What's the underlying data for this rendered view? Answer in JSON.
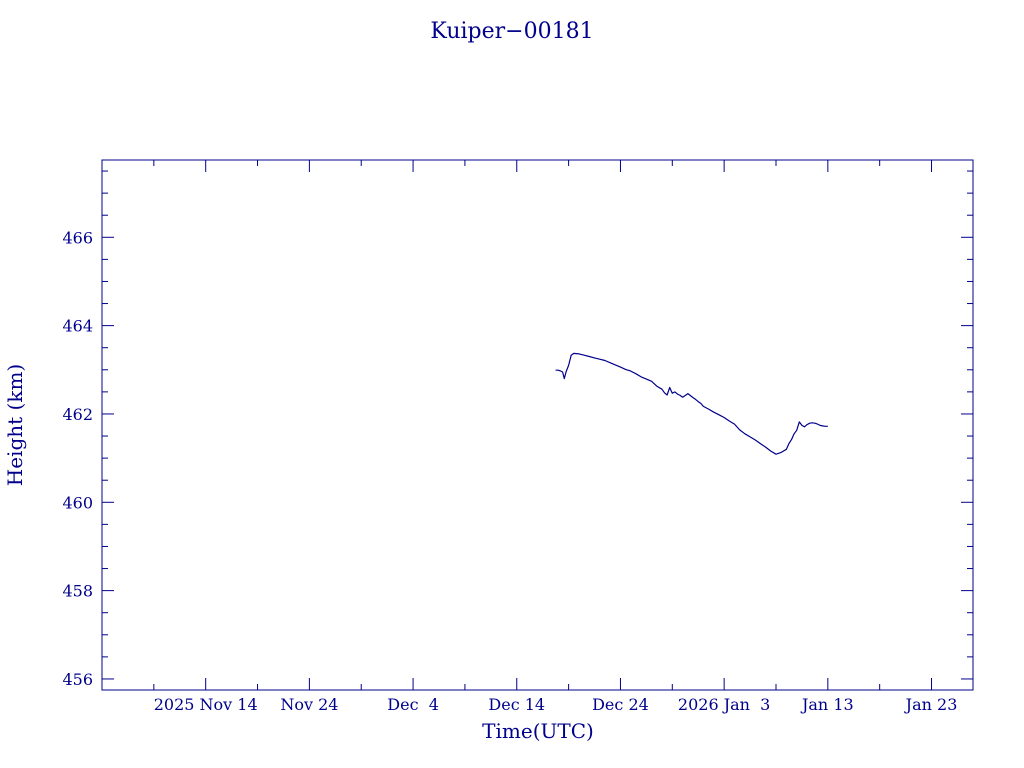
{
  "chart_data": {
    "type": "line",
    "title": "Kuiper−00181",
    "xlabel": "Time(UTC)",
    "ylabel": "Height (km)",
    "x_unit": "date (UTC)",
    "xlim": [
      "2025-11-04",
      "2026-01-27"
    ],
    "ylim": [
      455.75,
      467.75
    ],
    "x_tick_labels": [
      {
        "at": "2025-11-14",
        "label": "2025 Nov 14"
      },
      {
        "at": "2025-11-24",
        "label": "Nov 24"
      },
      {
        "at": "2025-12-04",
        "label": "Dec  4"
      },
      {
        "at": "2025-12-14",
        "label": "Dec 14"
      },
      {
        "at": "2025-12-24",
        "label": "Dec 24"
      },
      {
        "at": "2026-01-03",
        "label": "2026 Jan  3"
      },
      {
        "at": "2026-01-13",
        "label": "Jan 13"
      },
      {
        "at": "2026-01-23",
        "label": "Jan 23"
      }
    ],
    "x_minor_ticks": [
      "2025-11-09",
      "2025-11-19",
      "2025-11-29",
      "2025-12-09",
      "2025-12-19",
      "2025-12-29",
      "2026-01-08",
      "2026-01-18"
    ],
    "y_ticks": [
      456,
      458,
      460,
      462,
      464,
      466
    ],
    "y_tick_labels": [
      "456",
      "458",
      "460",
      "462",
      "464",
      "466"
    ],
    "y_minor_step": 0.5,
    "grid": false,
    "legend": "none",
    "color": "#00008b",
    "series": [
      {
        "x": [
          "2025-12-17T18:00",
          "2025-12-18T00:00",
          "2025-12-18T06:00",
          "2025-12-18T10:00",
          "2025-12-18T14:00",
          "2025-12-18T18:00",
          "2025-12-19T00:00",
          "2025-12-19T06:00",
          "2025-12-19T12:00",
          "2025-12-20T00:00",
          "2025-12-20T12:00",
          "2025-12-21T00:00",
          "2025-12-21T12:00",
          "2025-12-22T00:00",
          "2025-12-22T12:00",
          "2025-12-23T00:00",
          "2025-12-23T12:00",
          "2025-12-24T00:00",
          "2025-12-24T12:00",
          "2025-12-25T00:00",
          "2025-12-25T12:00",
          "2025-12-26T00:00",
          "2025-12-26T12:00",
          "2025-12-27T00:00",
          "2025-12-27T12:00",
          "2025-12-28T00:00",
          "2025-12-28T06:00",
          "2025-12-28T12:00",
          "2025-12-28T18:00",
          "2025-12-29T00:00",
          "2025-12-29T06:00",
          "2025-12-29T12:00",
          "2025-12-29T18:00",
          "2025-12-30T00:00",
          "2025-12-30T12:00",
          "2025-12-31T00:00",
          "2025-12-31T06:00",
          "2025-12-31T12:00",
          "2025-12-31T18:00",
          "2026-01-01T00:00",
          "2026-01-01T12:00",
          "2026-01-02T00:00",
          "2026-01-02T12:00",
          "2026-01-03T00:00",
          "2026-01-03T12:00",
          "2026-01-04T00:00",
          "2026-01-04T12:00",
          "2026-01-05T00:00",
          "2026-01-05T12:00",
          "2026-01-06T00:00",
          "2026-01-06T12:00",
          "2026-01-07T00:00",
          "2026-01-07T12:00",
          "2026-01-08T00:00",
          "2026-01-08T12:00",
          "2026-01-09T00:00",
          "2026-01-09T06:00",
          "2026-01-09T12:00",
          "2026-01-09T18:00",
          "2026-01-10T00:00",
          "2026-01-10T06:00",
          "2026-01-10T12:00",
          "2026-01-10T18:00",
          "2026-01-11T00:00",
          "2026-01-11T06:00",
          "2026-01-11T12:00",
          "2026-01-11T18:00",
          "2026-01-12T00:00",
          "2026-01-12T06:00",
          "2026-01-12T12:00",
          "2026-01-12T18:00",
          "2026-01-13T00:00"
        ],
        "y": [
          462.99,
          462.99,
          462.97,
          462.95,
          462.8,
          462.95,
          463.1,
          463.33,
          463.37,
          463.36,
          463.33,
          463.3,
          463.27,
          463.24,
          463.21,
          463.16,
          463.11,
          463.06,
          463.01,
          462.97,
          462.91,
          462.84,
          462.79,
          462.74,
          462.63,
          462.56,
          462.48,
          462.43,
          462.6,
          462.47,
          462.5,
          462.45,
          462.42,
          462.38,
          462.46,
          462.37,
          462.33,
          462.28,
          462.24,
          462.17,
          462.11,
          462.04,
          461.98,
          461.92,
          461.84,
          461.77,
          461.64,
          461.55,
          461.48,
          461.41,
          461.33,
          461.25,
          461.16,
          461.09,
          461.13,
          461.2,
          461.33,
          461.42,
          461.55,
          461.63,
          461.82,
          461.74,
          461.71,
          461.76,
          461.79,
          461.8,
          461.79,
          461.77,
          461.74,
          461.73,
          461.72,
          461.72
        ]
      }
    ]
  }
}
